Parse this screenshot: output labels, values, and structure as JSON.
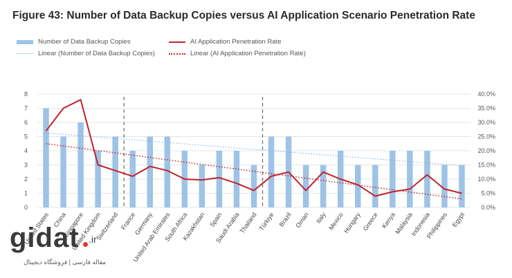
{
  "title": "Figure 43: Number of Data Backup Copies versus AI Application Scenario Penetration Rate",
  "legend": {
    "bars": "Number of Data Backup Copies",
    "line": "AI Application Penetration Rate",
    "trend_bars": "Linear (Number of Data Backup Copies)",
    "trend_line": "Linear (AI Application Penetration Rate)"
  },
  "colors": {
    "bar": "#9ec3e6",
    "line": "#c0232a",
    "trend_bar": "#8bb3d9",
    "trend_line": "#c0232a",
    "divider": "#777777",
    "grid": "#dcdcdc"
  },
  "chart_data": {
    "type": "bar",
    "categories": [
      "United States",
      "China",
      "Singapore",
      "United Kingdom",
      "Switzerland",
      "France",
      "Germany",
      "United Arab Emirates",
      "South Africa",
      "Kazakhstan",
      "Spain",
      "Saudi Arabia",
      "Thailand",
      "Türkiye",
      "Brazil",
      "Oman",
      "Italy",
      "Mexico",
      "Hungary",
      "Greece",
      "Kenya",
      "Malaysia",
      "Indonesia",
      "Philippines",
      "Egypt"
    ],
    "category_labels": [
      "United States",
      "China",
      "Singapore",
      "United Kingdom",
      "Switzerland",
      "France",
      "Germany",
      "United Arab Emirates",
      "South Africa",
      "Kazakhstan",
      "Spain",
      "Saudi Arabia",
      "Thailand",
      "Türkiye",
      "Brazil",
      "Oman",
      "Italy",
      "Mexico",
      "Hungary",
      "Greece",
      "Kenya",
      "Malaysia",
      "Indonesia",
      "Philippines",
      "Egypt"
    ],
    "series": [
      {
        "name": "Number of Data Backup Copies",
        "type": "bar",
        "axis": "left",
        "values": [
          7,
          5,
          6,
          4,
          5,
          4,
          5,
          5,
          4,
          3,
          4,
          4,
          3,
          5,
          5,
          3,
          3,
          4,
          3,
          3,
          4,
          4,
          4,
          3,
          3
        ]
      },
      {
        "name": "AI Application Penetration Rate",
        "type": "line",
        "axis": "right",
        "values": [
          0.27,
          0.35,
          0.38,
          0.15,
          0.13,
          0.11,
          0.145,
          0.13,
          0.1,
          0.097,
          0.105,
          0.085,
          0.06,
          0.11,
          0.125,
          0.06,
          0.125,
          0.1,
          0.08,
          0.04,
          0.055,
          0.065,
          0.115,
          0.065,
          0.05
        ]
      }
    ],
    "trendlines": [
      {
        "name": "Linear (Number of Data Backup Copies)",
        "axis": "left",
        "start": 5.25,
        "end": 2.95
      },
      {
        "name": "Linear (AI Application Penetration Rate)",
        "axis": "right",
        "start": 0.225,
        "end": 0.03
      }
    ],
    "dividers_after_category": [
      4,
      12
    ],
    "y_left": {
      "min": 0,
      "max": 8,
      "step": 1,
      "ticks": [
        "0",
        "1",
        "2",
        "3",
        "4",
        "5",
        "6",
        "7",
        "8"
      ]
    },
    "y_right": {
      "min": 0,
      "max": 0.4,
      "step": 0.05,
      "ticks": [
        "0.0%",
        "5.0%",
        "10.0%",
        "15.0%",
        "20.0%",
        "25.0%",
        "30.0%",
        "35.0%",
        "40.0%"
      ]
    },
    "grid": true,
    "legend_position": "top"
  },
  "watermark": {
    "logo": "gidat",
    "tld": ".ir",
    "subtitle": "مقاله فارسی | فروشگاه دیجیتال"
  }
}
